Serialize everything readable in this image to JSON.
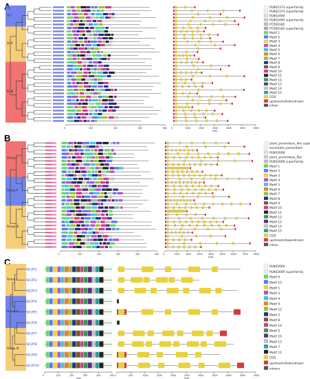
{
  "panels": {
    "a": {
      "letter": "A",
      "tree_rows": 34,
      "group_labels": [
        "Gr.I",
        "Gr.II",
        "Gr.III"
      ],
      "group_colors": [
        "#5a6fe8",
        "#f3c661",
        "#ef5a5a"
      ],
      "protein_axis": [
        "0",
        "200",
        "400",
        "600",
        "800"
      ],
      "gene_axis": [
        "0",
        "1000",
        "2000",
        "3000",
        "4000",
        "5000",
        "6000"
      ],
      "gene_axis_unit": "(bp)",
      "legend_items": [
        {
          "label": "PLN02373 superfamily",
          "color": "#f5f5f5"
        },
        {
          "label": "PLN02373 superfamily",
          "color": "#eeeeee"
        },
        {
          "label": "PLN02494",
          "color": "#dddddd"
        },
        {
          "label": "PLN02494 superfamily",
          "color": "#cccccc"
        },
        {
          "label": "PTZ00185",
          "color": "#bbbbbb"
        },
        {
          "label": "PTZ00185 superfamily",
          "color": "#aaaaaa"
        },
        {
          "label": "Motif 1",
          "color": "#6ad66a"
        },
        {
          "label": "Motif 2",
          "color": "#5f7af5"
        },
        {
          "label": "Motif 3",
          "color": "#f0d23c"
        },
        {
          "label": "Motif 4",
          "color": "#b34fd6"
        },
        {
          "label": "Motif 5",
          "color": "#3fc7d9"
        },
        {
          "label": "Motif 6",
          "color": "#e8832a"
        },
        {
          "label": "Motif 7",
          "color": "#9ac232"
        },
        {
          "label": "Motif 8",
          "color": "#1f2f8f"
        },
        {
          "label": "Motif 9",
          "color": "#7a5a2a"
        },
        {
          "label": "Motif 10",
          "color": "#d23a8f"
        },
        {
          "label": "Motif 11",
          "color": "#222222"
        },
        {
          "label": "Motif 12",
          "color": "#3a9b4a"
        },
        {
          "label": "Motif 13",
          "color": "#5a2d8a"
        },
        {
          "label": "Motif 14",
          "color": "#c2c2c2"
        },
        {
          "label": "Motif 15",
          "color": "#2aa0a0"
        },
        {
          "label": "CDS",
          "color": "#e8d23a"
        },
        {
          "label": "upstream/downstream",
          "color": "#d63a3a"
        },
        {
          "label": "intron",
          "color": "#555555"
        }
      ]
    },
    "b": {
      "letter": "B",
      "tree_rows": 30,
      "group_labels": [
        "Group I",
        "Group II",
        "Group III"
      ],
      "group_colors": [
        "#ef5a5a",
        "#5a6fe8",
        "#f3c661"
      ],
      "protein_axis": [
        "0",
        "100",
        "200",
        "300",
        "400",
        "500"
      ],
      "gene_axis": [
        "0",
        "1000",
        "2000",
        "3000",
        "4000",
        "5000",
        "6000",
        "7000",
        "8000"
      ],
      "gene_axis_unit": "(bp)",
      "legend_items": [
        {
          "label": "plant_peroxidase_like superfamily",
          "color": "#f5f5f5"
        },
        {
          "label": "ascorbate_peroxidase",
          "color": "#eeeeee"
        },
        {
          "label": "PLN02608",
          "color": "#dddddd"
        },
        {
          "label": "plant_peroxidase_like",
          "color": "#cccccc"
        },
        {
          "label": "PLN02608 superfamily",
          "color": "#bbbbbb"
        },
        {
          "label": "Motif 1",
          "color": "#6ad66a"
        },
        {
          "label": "Motif 2",
          "color": "#5f7af5"
        },
        {
          "label": "Motif 3",
          "color": "#f0d23c"
        },
        {
          "label": "Motif 4",
          "color": "#b34fd6"
        },
        {
          "label": "Motif 5",
          "color": "#3fc7d9"
        },
        {
          "label": "Motif 6",
          "color": "#e8832a"
        },
        {
          "label": "Motif 7",
          "color": "#9ac232"
        },
        {
          "label": "Motif 8",
          "color": "#1f2f8f"
        },
        {
          "label": "Motif 9",
          "color": "#7a5a2a"
        },
        {
          "label": "Motif 10",
          "color": "#d23a8f"
        },
        {
          "label": "Motif 11",
          "color": "#222222"
        },
        {
          "label": "Motif 12",
          "color": "#3a9b4a"
        },
        {
          "label": "Motif 13",
          "color": "#5a2d8a"
        },
        {
          "label": "Motif 14",
          "color": "#c2c2c2"
        },
        {
          "label": "Motif 15",
          "color": "#2aa0a0"
        },
        {
          "label": "CDS",
          "color": "#e8d23a"
        },
        {
          "label": "upstream/downstream",
          "color": "#d63a3a"
        },
        {
          "label": "intron",
          "color": "#555555"
        }
      ]
    },
    "c": {
      "letter": "C",
      "group_labels": [
        "Group I",
        "Group II",
        "Group III"
      ],
      "group_colors": [
        "#f3c661",
        "#5a6fe8",
        "#f3c661"
      ],
      "protein_axis": [
        "0",
        "100",
        "200",
        "300",
        "400",
        "500"
      ],
      "protein_axis_unit": "(aa)",
      "gene_axis": [
        "0",
        "500",
        "1000",
        "1500",
        "2000",
        "2500",
        "3000",
        "3500",
        "4000",
        "4500",
        "5000"
      ],
      "gene_axis_unit": "(bp)",
      "legend_items": [
        {
          "label": "PLN02609",
          "color": "#eef8ee"
        },
        {
          "label": "PLN02609 superfamily",
          "color": "#d8ecf6"
        },
        {
          "label": "Motif 6",
          "color": "#6ad66a"
        },
        {
          "label": "Motif 15",
          "color": "#5f7af5"
        },
        {
          "label": "Motif 1",
          "color": "#f0d23c"
        },
        {
          "label": "Motif 3",
          "color": "#b34fd6"
        },
        {
          "label": "Motif 9",
          "color": "#3fc7d9"
        },
        {
          "label": "Motif 4",
          "color": "#e8832a"
        },
        {
          "label": "Motif 12",
          "color": "#9ac232"
        },
        {
          "label": "Motif 2",
          "color": "#1f2f8f"
        },
        {
          "label": "Motif 8",
          "color": "#7a5a2a"
        },
        {
          "label": "Motif 14",
          "color": "#d23a8f"
        },
        {
          "label": "Motif 5",
          "color": "#3a9b4a"
        },
        {
          "label": "Motif 10",
          "color": "#5a2d8a"
        },
        {
          "label": "Motif 13",
          "color": "#c2c2c2"
        },
        {
          "label": "Motif 7",
          "color": "#2aa0a0"
        },
        {
          "label": "Motif 11",
          "color": "#222222"
        },
        {
          "label": "CDS",
          "color": "#e8d23a"
        },
        {
          "label": "upstream/downstream",
          "color": "#d63a3a"
        },
        {
          "label": "introns",
          "color": "#555555"
        }
      ],
      "gene_names": [
        "SlCAT1",
        "SlCAT2",
        "SlCAT3",
        "SlCAT4",
        "SlCAT5",
        "SlCAT6",
        "SlCAT7",
        "SlCAT8",
        "SlCAT9",
        "SlCAT10"
      ],
      "name_color": "#2a3ab0"
    }
  },
  "motif_palette": [
    "#6ad66a",
    "#5f7af5",
    "#f0d23c",
    "#b34fd6",
    "#3fc7d9",
    "#e8832a",
    "#9ac232",
    "#1f2f8f",
    "#7a5a2a",
    "#d23a8f",
    "#222222",
    "#3a9b4a",
    "#5a2d8a",
    "#c2c2c2",
    "#2aa0a0"
  ],
  "cds_color": "#e8d23a",
  "utr_color": "#d63a3a"
}
